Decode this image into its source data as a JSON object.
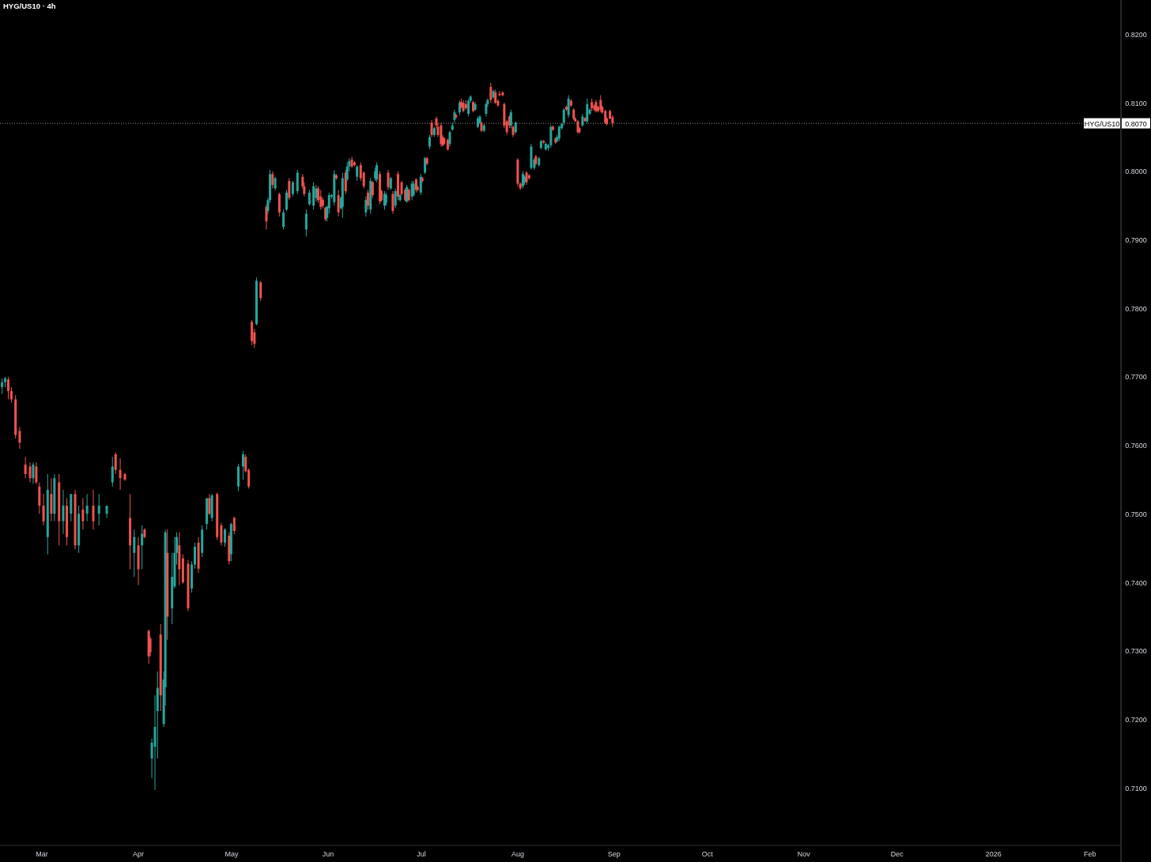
{
  "chart_data": {
    "type": "candlestick",
    "title": "HYG/US10 · 4h",
    "colors": [
      "#26a69a",
      "#26a69a",
      "#ef5350",
      "#ef5350",
      "#ef5350",
      "#ef5350",
      "#ef5350",
      "#ef5350",
      "#26a69a",
      "#ef5350",
      "#ef5350",
      "#ef5350",
      "#26a69a",
      "#ef5350",
      "#26a69a",
      "#ef5350",
      "#26a69a",
      "#ef5350",
      "#26a69a",
      "#ef5350",
      "#26a69a",
      "#ef5350",
      "#26a69a",
      "#ef5350",
      "#26a69a",
      "#26a69a",
      "#26a69a",
      "#ef5350",
      "#ef5350",
      "#ef5350",
      "#ef5350",
      "#26a69a",
      "#ef5350",
      "#26a69a",
      "#ef5350",
      "#ef5350",
      "#ef5350",
      "#26a69a",
      "#26a69a",
      "#26a69a",
      "#ef5350",
      "#26a69a",
      "#26a69a",
      "#ef5350",
      "#26a69a",
      "#26a69a",
      "#26a69a",
      "#ef5350",
      "#ef5350",
      "#ef5350",
      "#26a69a",
      "#26a69a",
      "#ef5350",
      "#26a69a",
      "#26a69a",
      "#ef5350",
      "#26a69a",
      "#ef5350",
      "#ef5350",
      "#26a69a",
      "#ef5350",
      "#26a69a",
      "#ef5350",
      "#26a69a",
      "#26a69a",
      "#ef5350",
      "#ef5350",
      "#ef5350",
      "#ef5350",
      "#26a69a",
      "#ef5350",
      "#ef5350",
      "#26a69a",
      "#26a69a",
      "#ef5350",
      "#26a69a",
      "#ef5350",
      "#26a69a",
      "#26a69a",
      "#ef5350",
      "#26a69a",
      "#26a69a",
      "#ef5350",
      "#ef5350",
      "#26a69a",
      "#26a69a",
      "#26a69a",
      "#26a69a",
      "#ef5350",
      "#ef5350",
      "#ef5350",
      "#ef5350",
      "#26a69a",
      "#26a69a",
      "#26a69a",
      "#26a69a",
      "#ef5350",
      "#ef5350",
      "#26a69a",
      "#26a69a",
      "#ef5350",
      "#26a69a",
      "#26a69a",
      "#ef5350",
      "#ef5350",
      "#26a69a",
      "#ef5350",
      "#ef5350",
      "#26a69a",
      "#ef5350",
      "#26a69a",
      "#ef5350",
      "#26a69a",
      "#26a69a",
      "#ef5350",
      "#ef5350",
      "#26a69a",
      "#26a69a",
      "#ef5350",
      "#26a69a",
      "#ef5350",
      "#26a69a",
      "#ef5350",
      "#26a69a",
      "#ef5350",
      "#ef5350",
      "#26a69a",
      "#ef5350",
      "#26a69a",
      "#26a69a",
      "#ef5350",
      "#ef5350",
      "#26a69a",
      "#ef5350",
      "#26a69a",
      "#ef5350",
      "#26a69a",
      "#ef5350",
      "#26a69a",
      "#ef5350",
      "#ef5350",
      "#ef5350",
      "#ef5350",
      "#ef5350",
      "#ef5350",
      "#26a69a",
      "#26a69a",
      "#26a69a",
      "#ef5350",
      "#26a69a",
      "#ef5350",
      "#ef5350",
      "#ef5350",
      "#26a69a",
      "#26a69a",
      "#ef5350",
      "#26a69a",
      "#26a69a",
      "#26a69a",
      "#ef5350",
      "#26a69a",
      "#26a69a",
      "#26a69a",
      "#ef5350",
      "#26a69a",
      "#ef5350",
      "#ef5350",
      "#ef5350",
      "#ef5350",
      "#ef5350",
      "#ef5350",
      "#ef5350",
      "#26a69a",
      "#ef5350",
      "#26a69a",
      "#ef5350",
      "#ef5350",
      "#26a69a",
      "#26a69a",
      "#ef5350",
      "#ef5350",
      "#26a69a",
      "#26a69a",
      "#ef5350",
      "#26a69a",
      "#26a69a",
      "#ef5350",
      "#26a69a",
      "#26a69a",
      "#26a69a",
      "#ef5350",
      "#ef5350",
      "#26a69a",
      "#26a69a",
      "#26a69a",
      "#26a69a",
      "#ef5350",
      "#26a69a",
      "#ef5350",
      "#ef5350",
      "#ef5350",
      "#ef5350",
      "#ef5350",
      "#26a69a",
      "#ef5350",
      "#26a69a",
      "#26a69a",
      "#ef5350",
      "#ef5350",
      "#ef5350",
      "#ef5350",
      "#ef5350",
      "#ef5350",
      "#ef5350",
      "#ef5350",
      "#ef5350",
      "#ef5350"
    ],
    "annotations": [
      {
        "text": "0.8070",
        "y": 0.807
      }
    ],
    "xlim": [
      "2025-02-15T12:00",
      "2026-02-11T00:00"
    ],
    "xticks": [
      {
        "value": "2025-03-01",
        "label": "Mar"
      },
      {
        "value": "2025-04-01",
        "label": "Apr"
      },
      {
        "value": "2025-05-01",
        "label": "May"
      },
      {
        "value": "2025-06-01",
        "label": "Jun"
      },
      {
        "value": "2025-07-01",
        "label": "Jul"
      },
      {
        "value": "2025-08-01",
        "label": "Aug"
      },
      {
        "value": "2025-09-01",
        "label": "Sep"
      },
      {
        "value": "2025-10-01",
        "label": "Oct"
      },
      {
        "value": "2025-11-01",
        "label": "Nov"
      },
      {
        "value": "2025-12-01",
        "label": "Dec"
      },
      {
        "value": "2026-01-01",
        "label": "2026"
      },
      {
        "value": "2026-02-01",
        "label": "Feb"
      }
    ],
    "ylim": [
      0.7016,
      0.825
    ],
    "yticks": [
      {
        "value": 0.71,
        "label": "0.7100"
      },
      {
        "value": 0.72,
        "label": "0.7200"
      },
      {
        "value": 0.73,
        "label": "0.7300"
      },
      {
        "value": 0.74,
        "label": "0.7400"
      },
      {
        "value": 0.75,
        "label": "0.7500"
      },
      {
        "value": 0.76,
        "label": "0.7600"
      },
      {
        "value": 0.77,
        "label": "0.7700"
      },
      {
        "value": 0.78,
        "label": "0.7800"
      },
      {
        "value": 0.79,
        "label": "0.7900"
      },
      {
        "value": 0.8,
        "label": "0.8000"
      },
      {
        "value": 0.81,
        "label": "0.8100"
      },
      {
        "value": 0.82,
        "label": "0.8200"
      }
    ],
    "grid": false,
    "ref_lines": [
      {
        "axis": "y",
        "value": 0.807,
        "label": "HYG/US10",
        "line_style": "dotted",
        "color": "#b2b5be"
      }
    ],
    "x": [
      "2025-02-16T04:00",
      "2025-02-17T04:00",
      "2025-02-18T04:00",
      "2025-02-19T04:00",
      "2025-02-20T12:00",
      "2025-02-21T20:00",
      "2025-02-23T16:00",
      "2025-02-25T04:00",
      "2025-02-26T04:00",
      "2025-02-27T04:00",
      "2025-02-28T04:00",
      "2025-03-01T12:00",
      "2025-03-02T20:00",
      "2025-03-04T00:00",
      "2025-03-05T00:00",
      "2025-03-06T12:00",
      "2025-03-07T20:00",
      "2025-03-09T00:00",
      "2025-03-10T08:00",
      "2025-03-11T16:00",
      "2025-03-12T20:00",
      "2025-03-14T04:00",
      "2025-03-15T12:00",
      "2025-03-17T12:00",
      "2025-03-19T08:00",
      "2025-03-21T20:00",
      "2025-03-23T16:00",
      "2025-03-24T16:00",
      "2025-03-26T04:00",
      "2025-03-27T16:00",
      "2025-03-29T08:00",
      "2025-03-30T16:00",
      "2025-04-01T00:00",
      "2025-04-02T04:00",
      "2025-04-03T00:00",
      "2025-04-04T08:00",
      "2025-04-04T20:00",
      "2025-04-05T08:00",
      "2025-04-06T08:00",
      "2025-04-07T04:00",
      "2025-04-08T04:00",
      "2025-04-09T04:00",
      "2025-04-09T16:00",
      "2025-04-10T08:00",
      "2025-04-11T20:00",
      "2025-04-12T16:00",
      "2025-04-13T08:00",
      "2025-04-14T04:00",
      "2025-04-15T08:00",
      "2025-04-17T00:00",
      "2025-04-18T04:00",
      "2025-04-19T04:00",
      "2025-04-20T08:00",
      "2025-04-21T12:00",
      "2025-04-23T00:00",
      "2025-04-23T20:00",
      "2025-04-24T16:00",
      "2025-04-26T08:00",
      "2025-04-27T16:00",
      "2025-04-28T20:00",
      "2025-04-30T04:00",
      "2025-04-30T20:00",
      "2025-05-01T20:00",
      "2025-05-03T04:00",
      "2025-05-04T16:00",
      "2025-05-05T12:00",
      "2025-05-06T12:00",
      "2025-05-07T12:00",
      "2025-05-08T08:00",
      "2025-05-09T00:00",
      "2025-05-10T08:00",
      "2025-05-12T04:00",
      "2025-05-12T16:00",
      "2025-05-13T08:00",
      "2025-05-14T04:00",
      "2025-05-15T00:00",
      "2025-05-16T08:00",
      "2025-05-17T16:00",
      "2025-05-18T16:00",
      "2025-05-19T12:00",
      "2025-05-20T16:00",
      "2025-05-22T04:00",
      "2025-05-23T20:00",
      "2025-05-24T08:00",
      "2025-05-25T00:00",
      "2025-05-26T00:00",
      "2025-05-27T08:00",
      "2025-05-28T04:00",
      "2025-05-28T20:00",
      "2025-05-29T16:00",
      "2025-05-30T08:00",
      "2025-05-31T04:00",
      "2025-05-31T16:00",
      "2025-06-01T08:00",
      "2025-06-02T04:00",
      "2025-06-03T00:00",
      "2025-06-03T16:00",
      "2025-06-04T08:00",
      "2025-06-05T04:00",
      "2025-06-05T16:00",
      "2025-06-06T16:00",
      "2025-06-07T04:00",
      "2025-06-07T20:00",
      "2025-06-08T16:00",
      "2025-06-09T12:00",
      "2025-06-10T08:00",
      "2025-06-11T12:00",
      "2025-06-12T12:00",
      "2025-06-13T04:00",
      "2025-06-13T20:00",
      "2025-06-14T16:00",
      "2025-06-15T08:00",
      "2025-06-16T04:00",
      "2025-06-16T16:00",
      "2025-06-17T16:00",
      "2025-06-18T04:00",
      "2025-06-19T04:00",
      "2025-06-19T16:00",
      "2025-06-20T08:00",
      "2025-06-21T04:00",
      "2025-06-21T20:00",
      "2025-06-22T16:00",
      "2025-06-23T12:00",
      "2025-06-24T04:00",
      "2025-06-24T16:00",
      "2025-06-25T20:00",
      "2025-06-26T08:00",
      "2025-06-27T00:00",
      "2025-06-28T00:00",
      "2025-06-28T12:00",
      "2025-06-29T08:00",
      "2025-06-29T20:00",
      "2025-06-30T20:00",
      "2025-07-01T08:00",
      "2025-07-02T04:00",
      "2025-07-02T20:00",
      "2025-07-03T16:00",
      "2025-07-04T08:00",
      "2025-07-05T04:00",
      "2025-07-05T20:00",
      "2025-07-06T08:00",
      "2025-07-07T08:00",
      "2025-07-07T20:00",
      "2025-07-08T08:00",
      "2025-07-09T12:00",
      "2025-07-10T04:00",
      "2025-07-11T00:00",
      "2025-07-11T16:00",
      "2025-07-12T04:00",
      "2025-07-13T08:00",
      "2025-07-13T20:00",
      "2025-07-14T12:00",
      "2025-07-15T08:00",
      "2025-07-16T04:00",
      "2025-07-16T20:00",
      "2025-07-17T16:00",
      "2025-07-18T08:00",
      "2025-07-19T04:00",
      "2025-07-19T20:00",
      "2025-07-20T08:00",
      "2025-07-21T04:00",
      "2025-07-21T20:00",
      "2025-07-22T08:00",
      "2025-07-23T08:00",
      "2025-07-24T04:00",
      "2025-07-24T20:00",
      "2025-07-25T16:00",
      "2025-07-26T04:00",
      "2025-07-27T04:00",
      "2025-07-27T16:00",
      "2025-07-28T12:00",
      "2025-07-29T08:00",
      "2025-07-29T20:00",
      "2025-07-30T12:00",
      "2025-07-31T08:00",
      "2025-08-01T00:00",
      "2025-08-01T20:00",
      "2025-08-02T16:00",
      "2025-08-03T04:00",
      "2025-08-03T20:00",
      "2025-08-04T16:00",
      "2025-08-05T08:00",
      "2025-08-06T08:00",
      "2025-08-06T20:00",
      "2025-08-07T20:00",
      "2025-08-08T12:00",
      "2025-08-09T08:00",
      "2025-08-10T00:00",
      "2025-08-10T20:00",
      "2025-08-11T16:00",
      "2025-08-12T08:00",
      "2025-08-13T04:00",
      "2025-08-13T16:00",
      "2025-08-14T08:00",
      "2025-08-15T04:00",
      "2025-08-15T20:00",
      "2025-08-16T16:00",
      "2025-08-17T08:00",
      "2025-08-18T04:00",
      "2025-08-19T00:00",
      "2025-08-19T12:00",
      "2025-08-20T08:00",
      "2025-08-20T20:00",
      "2025-08-21T20:00",
      "2025-08-22T16:00",
      "2025-08-23T08:00",
      "2025-08-24T04:00",
      "2025-08-24T20:00",
      "2025-08-25T16:00",
      "2025-08-26T04:00",
      "2025-08-26T20:00",
      "2025-08-27T16:00",
      "2025-08-28T04:00",
      "2025-08-29T04:00",
      "2025-08-29T16:00",
      "2025-08-30T16:00",
      "2025-08-31T12:00"
    ],
    "ohlc": [
      [
        0.7685,
        0.7698,
        0.7675,
        0.7692
      ],
      [
        0.7692,
        0.77,
        0.7685,
        0.7698
      ],
      [
        0.7696,
        0.77,
        0.7667,
        0.7679
      ],
      [
        0.7679,
        0.7685,
        0.7662,
        0.7667
      ],
      [
        0.7667,
        0.7673,
        0.761,
        0.7615
      ],
      [
        0.7621,
        0.7627,
        0.7595,
        0.7604
      ],
      [
        0.7572,
        0.7583,
        0.7552,
        0.7558
      ],
      [
        0.7569,
        0.7575,
        0.7546,
        0.7552
      ],
      [
        0.7552,
        0.7575,
        0.7544,
        0.7572
      ],
      [
        0.7569,
        0.7575,
        0.7544,
        0.7546
      ],
      [
        0.754,
        0.7546,
        0.75,
        0.7512
      ],
      [
        0.7512,
        0.7529,
        0.7483,
        0.7489
      ],
      [
        0.7466,
        0.7558,
        0.7441,
        0.7535
      ],
      [
        0.7529,
        0.7552,
        0.7489,
        0.75
      ],
      [
        0.75,
        0.7558,
        0.7489,
        0.7552
      ],
      [
        0.7546,
        0.7558,
        0.7454,
        0.7489
      ],
      [
        0.7489,
        0.7535,
        0.7471,
        0.7512
      ],
      [
        0.7512,
        0.7523,
        0.7454,
        0.7466
      ],
      [
        0.75,
        0.7529,
        0.7489,
        0.7529
      ],
      [
        0.7529,
        0.7535,
        0.7448,
        0.7454
      ],
      [
        0.7454,
        0.7512,
        0.7443,
        0.75
      ],
      [
        0.7506,
        0.7523,
        0.7477,
        0.7489
      ],
      [
        0.75,
        0.7529,
        0.7489,
        0.7512
      ],
      [
        0.7512,
        0.7535,
        0.7477,
        0.7489
      ],
      [
        0.75,
        0.7529,
        0.7483,
        0.7512
      ],
      [
        0.75,
        0.7512,
        0.7494,
        0.7512
      ],
      [
        0.7546,
        0.7583,
        0.754,
        0.7569
      ],
      [
        0.7587,
        0.759,
        0.7558,
        0.7564
      ],
      [
        0.7564,
        0.7581,
        0.7535,
        0.7552
      ],
      [
        0.7558,
        0.756,
        0.7548,
        0.755
      ],
      [
        0.7494,
        0.7529,
        0.7419,
        0.7454
      ],
      [
        0.7443,
        0.7477,
        0.7408,
        0.7466
      ],
      [
        0.7454,
        0.7466,
        0.7396,
        0.7419
      ],
      [
        0.7454,
        0.7483,
        0.7419,
        0.7471
      ],
      [
        0.7477,
        0.7479,
        0.7464,
        0.7466
      ],
      [
        0.7329,
        0.7331,
        0.7281,
        0.7292
      ],
      [
        0.7318,
        0.7321,
        0.7292,
        0.7298
      ],
      [
        0.7143,
        0.7172,
        0.7114,
        0.7166
      ],
      [
        0.716,
        0.7235,
        0.7097,
        0.7189
      ],
      [
        0.7212,
        0.727,
        0.7143,
        0.7246
      ],
      [
        0.7324,
        0.7339,
        0.7212,
        0.7235
      ],
      [
        0.7193,
        0.727,
        0.7189,
        0.7258
      ],
      [
        0.7247,
        0.7477,
        0.722,
        0.7473
      ],
      [
        0.7443,
        0.7477,
        0.7316,
        0.735
      ],
      [
        0.7362,
        0.7443,
        0.7339,
        0.7408
      ],
      [
        0.7394,
        0.7466,
        0.7391,
        0.7443
      ],
      [
        0.7443,
        0.7473,
        0.7426,
        0.7466
      ],
      [
        0.7454,
        0.7473,
        0.7396,
        0.7419
      ],
      [
        0.7435,
        0.7441,
        0.7398,
        0.74
      ],
      [
        0.7427,
        0.7433,
        0.7358,
        0.7362
      ],
      [
        0.7391,
        0.7431,
        0.7385,
        0.7426
      ],
      [
        0.7426,
        0.7458,
        0.742,
        0.7452
      ],
      [
        0.7458,
        0.7466,
        0.7414,
        0.742
      ],
      [
        0.7443,
        0.7483,
        0.7437,
        0.7477
      ],
      [
        0.7485,
        0.7523,
        0.7477,
        0.7523
      ],
      [
        0.7523,
        0.7529,
        0.7498,
        0.75
      ],
      [
        0.7494,
        0.7529,
        0.7489,
        0.7527
      ],
      [
        0.7529,
        0.7531,
        0.7462,
        0.7466
      ],
      [
        0.7483,
        0.7487,
        0.7454,
        0.7458
      ],
      [
        0.7458,
        0.7479,
        0.7452,
        0.7477
      ],
      [
        0.7468,
        0.7473,
        0.7426,
        0.7431
      ],
      [
        0.7441,
        0.7487,
        0.7431,
        0.7485
      ],
      [
        0.7494,
        0.7496,
        0.747,
        0.7475
      ],
      [
        0.754,
        0.7573,
        0.7533,
        0.7569
      ],
      [
        0.7569,
        0.7592,
        0.755,
        0.7587
      ],
      [
        0.7583,
        0.7587,
        0.756,
        0.7562
      ],
      [
        0.7564,
        0.7566,
        0.7537,
        0.754
      ],
      [
        0.778,
        0.7783,
        0.7746,
        0.7752
      ],
      [
        0.7765,
        0.777,
        0.7742,
        0.7748
      ],
      [
        0.7777,
        0.7845,
        0.7775,
        0.784
      ],
      [
        0.7838,
        0.784,
        0.7811,
        0.7815
      ],
      [
        0.7948,
        0.7952,
        0.7915,
        0.7927
      ],
      [
        0.7942,
        0.7961,
        0.7938,
        0.7958
      ],
      [
        0.7958,
        0.8002,
        0.7954,
        0.7996
      ],
      [
        0.7996,
        0.8,
        0.7975,
        0.798
      ],
      [
        0.7975,
        0.7992,
        0.7972,
        0.799
      ],
      [
        0.7967,
        0.7969,
        0.7934,
        0.794
      ],
      [
        0.7919,
        0.7944,
        0.7915,
        0.794
      ],
      [
        0.7944,
        0.7973,
        0.7942,
        0.7969
      ],
      [
        0.7986,
        0.799,
        0.7958,
        0.7961
      ],
      [
        0.7967,
        0.7986,
        0.7963,
        0.7984
      ],
      [
        0.7971,
        0.8002,
        0.7967,
        0.7998
      ],
      [
        0.7992,
        0.7996,
        0.7975,
        0.7978
      ],
      [
        0.7978,
        0.7984,
        0.7963,
        0.7967
      ],
      [
        0.7915,
        0.7944,
        0.7905,
        0.7938
      ],
      [
        0.7952,
        0.7973,
        0.795,
        0.7969
      ],
      [
        0.795,
        0.7984,
        0.7944,
        0.7978
      ],
      [
        0.7961,
        0.798,
        0.7956,
        0.7975
      ],
      [
        0.7975,
        0.7978,
        0.7954,
        0.7958
      ],
      [
        0.7963,
        0.7973,
        0.7944,
        0.7948
      ],
      [
        0.7958,
        0.7961,
        0.7946,
        0.795
      ],
      [
        0.7946,
        0.7948,
        0.7927,
        0.793
      ],
      [
        0.7932,
        0.795,
        0.7927,
        0.7948
      ],
      [
        0.7946,
        0.7969,
        0.7938,
        0.7965
      ],
      [
        0.7963,
        0.7967,
        0.796,
        0.7965
      ],
      [
        0.7955,
        0.8002,
        0.795,
        0.7996
      ],
      [
        0.7994,
        0.7996,
        0.7988,
        0.799
      ],
      [
        0.7965,
        0.7973,
        0.7934,
        0.794
      ],
      [
        0.7946,
        0.7963,
        0.7944,
        0.7961
      ],
      [
        0.7948,
        0.7998,
        0.7932,
        0.799
      ],
      [
        0.7998,
        0.8002,
        0.7967,
        0.7971
      ],
      [
        0.7988,
        0.8013,
        0.7986,
        0.8007
      ],
      [
        0.8007,
        0.8019,
        0.8,
        0.8015
      ],
      [
        0.8017,
        0.8021,
        0.8005,
        0.8007
      ],
      [
        0.8013,
        0.8015,
        0.8007,
        0.8009
      ],
      [
        0.7992,
        0.8009,
        0.7986,
        0.8007
      ],
      [
        0.8009,
        0.8013,
        0.7986,
        0.799
      ],
      [
        0.7998,
        0.8,
        0.7975,
        0.7978
      ],
      [
        0.794,
        0.7963,
        0.7934,
        0.7958
      ],
      [
        0.7969,
        0.7973,
        0.7944,
        0.795
      ],
      [
        0.7944,
        0.799,
        0.7938,
        0.7986
      ],
      [
        0.7984,
        0.7986,
        0.7961,
        0.7965
      ],
      [
        0.799,
        0.8005,
        0.7986,
        0.8
      ],
      [
        0.7988,
        0.8013,
        0.7984,
        0.8009
      ],
      [
        0.7996,
        0.8,
        0.7952,
        0.7956
      ],
      [
        0.7971,
        0.7973,
        0.7956,
        0.7958
      ],
      [
        0.795,
        0.7971,
        0.7944,
        0.7967
      ],
      [
        0.7954,
        0.7969,
        0.795,
        0.7965
      ],
      [
        0.7998,
        0.8002,
        0.7973,
        0.7977
      ],
      [
        0.7975,
        0.7992,
        0.7973,
        0.799
      ],
      [
        0.7967,
        0.7971,
        0.7938,
        0.7942
      ],
      [
        0.795,
        0.7975,
        0.7946,
        0.7971
      ],
      [
        0.7996,
        0.8,
        0.7958,
        0.7963
      ],
      [
        0.7958,
        0.7967,
        0.7956,
        0.7965
      ],
      [
        0.7984,
        0.7986,
        0.7965,
        0.7967
      ],
      [
        0.7973,
        0.7975,
        0.7956,
        0.7958
      ],
      [
        0.7956,
        0.798,
        0.7954,
        0.7977
      ],
      [
        0.7973,
        0.7975,
        0.7956,
        0.7958
      ],
      [
        0.7963,
        0.7986,
        0.7958,
        0.7982
      ],
      [
        0.7965,
        0.7986,
        0.7963,
        0.7982
      ],
      [
        0.7988,
        0.799,
        0.7969,
        0.7973
      ],
      [
        0.7977,
        0.7979,
        0.7971,
        0.7973
      ],
      [
        0.7969,
        0.7996,
        0.7965,
        0.7992
      ],
      [
        0.799,
        0.7992,
        0.7984,
        0.7986
      ],
      [
        0.7998,
        0.8021,
        0.7996,
        0.8019
      ],
      [
        0.8019,
        0.8021,
        0.8009,
        0.8011
      ],
      [
        0.8036,
        0.8053,
        0.8032,
        0.805
      ],
      [
        0.8071,
        0.8075,
        0.805,
        0.8053
      ],
      [
        0.8053,
        0.8065,
        0.805,
        0.8063
      ],
      [
        0.8077,
        0.808,
        0.8063,
        0.8067
      ],
      [
        0.8065,
        0.8071,
        0.805,
        0.8053
      ],
      [
        0.8067,
        0.8071,
        0.8036,
        0.804
      ],
      [
        0.805,
        0.8053,
        0.8036,
        0.8038
      ],
      [
        0.8048,
        0.805,
        0.8038,
        0.804
      ],
      [
        0.8046,
        0.8048,
        0.803,
        0.8032
      ],
      [
        0.804,
        0.8059,
        0.8036,
        0.8057
      ],
      [
        0.8061,
        0.8071,
        0.8059,
        0.8067
      ],
      [
        0.8075,
        0.809,
        0.8071,
        0.8086
      ],
      [
        0.8082,
        0.8084,
        0.8077,
        0.8079
      ],
      [
        0.8086,
        0.8103,
        0.8082,
        0.81
      ],
      [
        0.8101,
        0.8106,
        0.8092,
        0.8094
      ],
      [
        0.81,
        0.8104,
        0.8086,
        0.8088
      ],
      [
        0.8098,
        0.8104,
        0.809,
        0.8092
      ],
      [
        0.8084,
        0.8106,
        0.808,
        0.8103
      ],
      [
        0.8103,
        0.8111,
        0.81,
        0.8109
      ],
      [
        0.8101,
        0.8103,
        0.8086,
        0.8088
      ],
      [
        0.809,
        0.8101,
        0.8088,
        0.8098
      ],
      [
        0.8065,
        0.808,
        0.8063,
        0.8077
      ],
      [
        0.8071,
        0.8082,
        0.8069,
        0.808
      ],
      [
        0.8071,
        0.8073,
        0.8057,
        0.8059
      ],
      [
        0.8059,
        0.8069,
        0.8057,
        0.8067
      ],
      [
        0.8084,
        0.81,
        0.808,
        0.8098
      ],
      [
        0.8098,
        0.8106,
        0.8094,
        0.8104
      ],
      [
        0.8123,
        0.8129,
        0.81,
        0.8104
      ],
      [
        0.8108,
        0.8119,
        0.8106,
        0.8117
      ],
      [
        0.8115,
        0.8119,
        0.8098,
        0.81
      ],
      [
        0.8103,
        0.8105,
        0.8094,
        0.8096
      ],
      [
        0.8113,
        0.8117,
        0.8109,
        0.8111
      ],
      [
        0.8115,
        0.8117,
        0.8109,
        0.8111
      ],
      [
        0.8098,
        0.81,
        0.8063,
        0.8067
      ],
      [
        0.8073,
        0.8075,
        0.8053,
        0.8057
      ],
      [
        0.808,
        0.8082,
        0.8063,
        0.8067
      ],
      [
        0.8067,
        0.809,
        0.8063,
        0.8086
      ],
      [
        0.8065,
        0.8067,
        0.805,
        0.8053
      ],
      [
        0.8057,
        0.8073,
        0.8055,
        0.8071
      ],
      [
        0.8017,
        0.8019,
        0.7978,
        0.7982
      ],
      [
        0.7982,
        0.7984,
        0.7973,
        0.7975
      ],
      [
        0.7978,
        0.8,
        0.7975,
        0.7996
      ],
      [
        0.7984,
        0.7994,
        0.798,
        0.7992
      ],
      [
        0.7998,
        0.8,
        0.798,
        0.7984
      ],
      [
        0.7994,
        0.7996,
        0.7988,
        0.799
      ],
      [
        0.8005,
        0.804,
        0.8002,
        0.8036
      ],
      [
        0.8005,
        0.8019,
        0.8002,
        0.8017
      ],
      [
        0.8022,
        0.8024,
        0.8009,
        0.8011
      ],
      [
        0.8009,
        0.8021,
        0.8007,
        0.8019
      ],
      [
        0.8034,
        0.8046,
        0.8032,
        0.8044
      ],
      [
        0.8044,
        0.8046,
        0.804,
        0.8042
      ],
      [
        0.8032,
        0.8042,
        0.803,
        0.804
      ],
      [
        0.8034,
        0.804,
        0.803,
        0.8038
      ],
      [
        0.8038,
        0.8067,
        0.8034,
        0.8065
      ],
      [
        0.8065,
        0.8067,
        0.8059,
        0.8061
      ],
      [
        0.8048,
        0.805,
        0.804,
        0.8042
      ],
      [
        0.8044,
        0.8053,
        0.8042,
        0.805
      ],
      [
        0.8048,
        0.8067,
        0.8044,
        0.8065
      ],
      [
        0.8063,
        0.8071,
        0.8061,
        0.8069
      ],
      [
        0.8071,
        0.8092,
        0.8067,
        0.809
      ],
      [
        0.8094,
        0.8096,
        0.8088,
        0.809
      ],
      [
        0.8082,
        0.8111,
        0.8078,
        0.8106
      ],
      [
        0.8103,
        0.8105,
        0.8094,
        0.8096
      ],
      [
        0.809,
        0.8092,
        0.8075,
        0.8077
      ],
      [
        0.8077,
        0.8079,
        0.8072,
        0.8073
      ],
      [
        0.8073,
        0.8075,
        0.8055,
        0.8057
      ],
      [
        0.8063,
        0.8065,
        0.8055,
        0.8057
      ],
      [
        0.8067,
        0.8084,
        0.8065,
        0.808
      ],
      [
        0.8078,
        0.8079,
        0.8072,
        0.8073
      ],
      [
        0.8073,
        0.8106,
        0.807,
        0.8098
      ],
      [
        0.8084,
        0.8092,
        0.8082,
        0.809
      ],
      [
        0.8101,
        0.8106,
        0.8088,
        0.8092
      ],
      [
        0.8096,
        0.8098,
        0.8088,
        0.809
      ],
      [
        0.8101,
        0.8104,
        0.8086,
        0.8088
      ],
      [
        0.8094,
        0.8096,
        0.8086,
        0.8088
      ],
      [
        0.8104,
        0.8111,
        0.8086,
        0.809
      ],
      [
        0.8094,
        0.8096,
        0.8084,
        0.8086
      ],
      [
        0.8088,
        0.809,
        0.8069,
        0.8071
      ],
      [
        0.8077,
        0.8079,
        0.8067,
        0.8069
      ],
      [
        0.8088,
        0.809,
        0.8076,
        0.8077
      ],
      [
        0.8079,
        0.8082,
        0.8065,
        0.807
      ]
    ]
  }
}
